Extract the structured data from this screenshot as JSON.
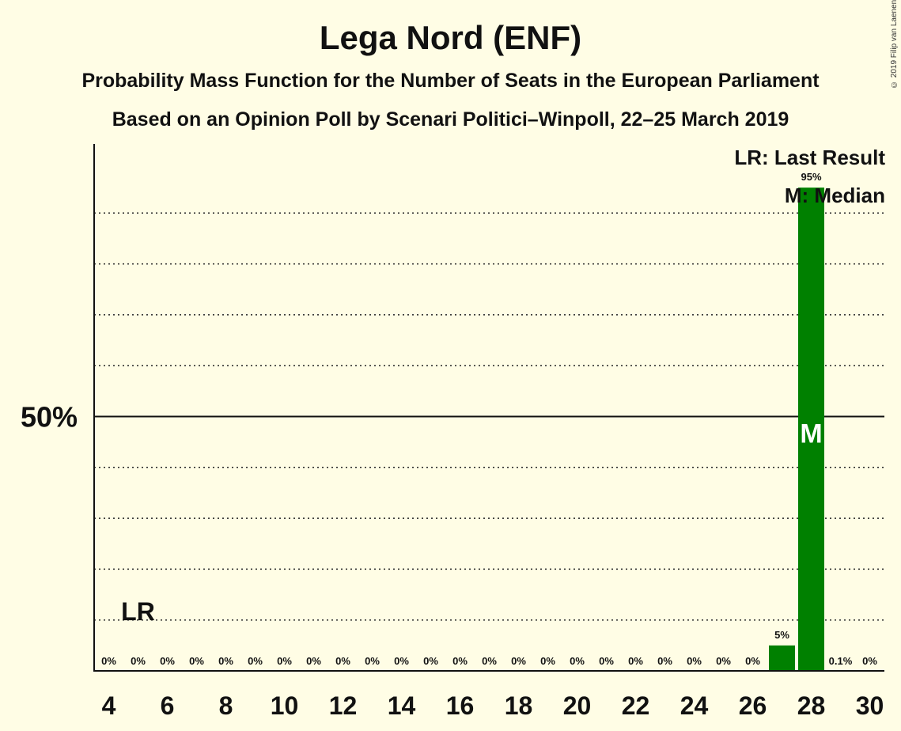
{
  "chart_data": {
    "type": "bar",
    "title": "Lega Nord (ENF)",
    "subtitle": "Probability Mass Function for the Number of Seats in the European Parliament",
    "subtitle2": "Based on an Opinion Poll by Scenari Politici–Winpoll, 22–25 March 2019",
    "copyright": "© 2019 Filip van Laenen",
    "x": [
      4,
      5,
      6,
      7,
      8,
      9,
      10,
      11,
      12,
      13,
      14,
      15,
      16,
      17,
      18,
      19,
      20,
      21,
      22,
      23,
      24,
      25,
      26,
      27,
      28,
      29,
      30
    ],
    "values": [
      0,
      0,
      0,
      0,
      0,
      0,
      0,
      0,
      0,
      0,
      0,
      0,
      0,
      0,
      0,
      0,
      0,
      0,
      0,
      0,
      0,
      0,
      0,
      5,
      95,
      0.1,
      0
    ],
    "data_labels": [
      "0%",
      "0%",
      "0%",
      "0%",
      "0%",
      "0%",
      "0%",
      "0%",
      "0%",
      "0%",
      "0%",
      "0%",
      "0%",
      "0%",
      "0%",
      "0%",
      "0%",
      "0%",
      "0%",
      "0%",
      "0%",
      "0%",
      "0%",
      "5%",
      "95%",
      "0.1%",
      "0%"
    ],
    "x_ticks": [
      "4",
      "6",
      "8",
      "10",
      "12",
      "14",
      "16",
      "18",
      "20",
      "22",
      "24",
      "26",
      "28",
      "30"
    ],
    "y_tick_label": "50%",
    "ylim": [
      0,
      103
    ],
    "last_result_seat": 5,
    "last_result_marker": "LR",
    "median_seat": 28,
    "median_marker": "M",
    "legend": {
      "last_result": "LR: Last Result",
      "median": "M: Median"
    },
    "bar_color": "#008000",
    "background": "#FFFDE5",
    "grid": "dotted"
  }
}
